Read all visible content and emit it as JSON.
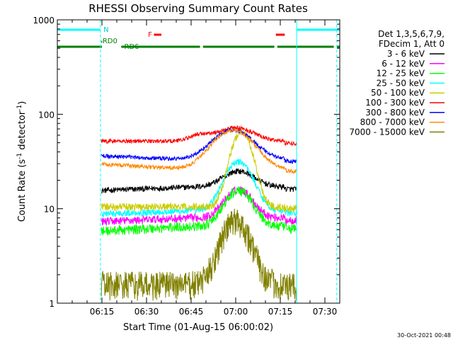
{
  "chart_data": {
    "type": "line",
    "title": "RHESSI Observing Summary Count Rates",
    "xlabel": "Start Time (01-Aug-15 06:00:02)",
    "ylabel_main": "Count Rate (s",
    "ylabel_sup1": "-1",
    "ylabel_mid": " detector",
    "ylabel_sup2": "-1",
    "ylabel_end": ")",
    "x_minutes": [
      0,
      95
    ],
    "ylim": [
      1,
      1000
    ],
    "yscale": "log",
    "x_ticks": [
      {
        "minutes": 15,
        "label": "06:15"
      },
      {
        "minutes": 30,
        "label": "06:30"
      },
      {
        "minutes": 45,
        "label": "06:45"
      },
      {
        "minutes": 60,
        "label": "07:00"
      },
      {
        "minutes": 75,
        "label": "07:15"
      },
      {
        "minutes": 90,
        "label": "07:30"
      }
    ],
    "y_ticks": [
      {
        "value": 1,
        "label": "1"
      },
      {
        "value": 10,
        "label": "10"
      },
      {
        "value": 100,
        "label": "100"
      },
      {
        "value": 1000,
        "label": "1000"
      }
    ],
    "legend_header": [
      "Det 1,3,5,6,7,9,",
      "FDecim 1, Att 0"
    ],
    "legend_position": "right",
    "series": [
      {
        "name": "3 - 6 keV",
        "color": "#000000"
      },
      {
        "name": "6 - 12 keV",
        "color": "#ff00ff"
      },
      {
        "name": "12 - 25 keV",
        "color": "#00ff00"
      },
      {
        "name": "25 - 50 keV",
        "color": "#00ffff"
      },
      {
        "name": "50 - 100 keV",
        "color": "#cccc00"
      },
      {
        "name": "100 - 300 keV",
        "color": "#ff0000"
      },
      {
        "name": "300 - 800 keV",
        "color": "#0000ff"
      },
      {
        "name": "800 - 7000 keV",
        "color": "#ff8800"
      },
      {
        "name": "7000 - 15000 keV",
        "color": "#808000"
      }
    ],
    "flag_labels": {
      "night": "N",
      "flare": "F",
      "rd0": "RD0",
      "rd6": "RD6"
    },
    "flags": {
      "night_segments": [
        [
          0,
          14.5
        ],
        [
          80.5,
          95
        ]
      ],
      "flare_segments": [
        [
          32.5,
          35
        ],
        [
          73.5,
          76.5
        ]
      ],
      "rd0_segments": [
        [
          14.8,
          15.1
        ]
      ],
      "rd6_segments": [
        [
          0,
          15
        ],
        [
          21.5,
          48
        ],
        [
          49,
          73
        ],
        [
          74,
          93
        ],
        [
          94,
          95
        ]
      ]
    },
    "saa_lines_minutes": [
      0,
      14.5,
      80.5,
      94
    ],
    "timestamp": "30-Oct-2021 00:48"
  }
}
